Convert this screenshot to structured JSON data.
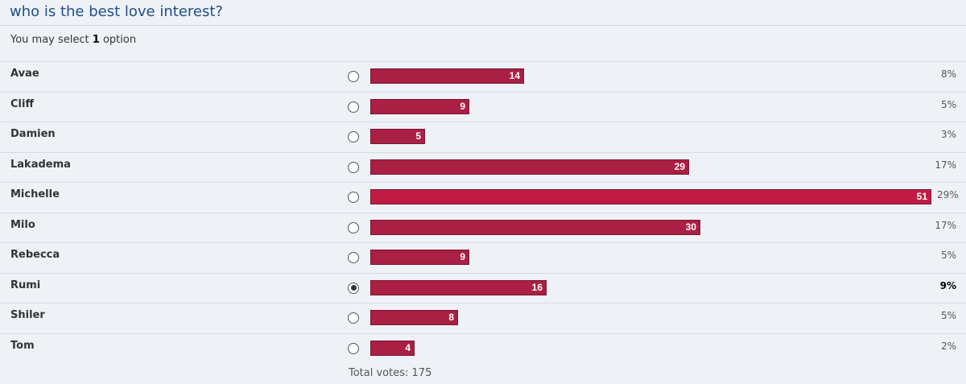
{
  "poll": {
    "title": "who is the best love interest?",
    "select_prefix": "You may select",
    "select_count": "1",
    "select_suffix": "option",
    "total_votes_label": "Total votes: 175",
    "bar_color": "#aa1f44",
    "max_votes": 51,
    "options": [
      {
        "label": "Avae",
        "votes": 14,
        "votes_text": "14",
        "percent": "8%",
        "selected": false
      },
      {
        "label": "Cliff",
        "votes": 9,
        "votes_text": "9",
        "percent": "5%",
        "selected": false
      },
      {
        "label": "Damien",
        "votes": 5,
        "votes_text": "5",
        "percent": "3%",
        "selected": false
      },
      {
        "label": "Lakadema",
        "votes": 29,
        "votes_text": "29",
        "percent": "17%",
        "selected": false
      },
      {
        "label": "Michelle",
        "votes": 51,
        "votes_text": "51",
        "percent": "29%",
        "selected": false
      },
      {
        "label": "Milo",
        "votes": 30,
        "votes_text": "30",
        "percent": "17%",
        "selected": false
      },
      {
        "label": "Rebecca",
        "votes": 9,
        "votes_text": "9",
        "percent": "5%",
        "selected": false
      },
      {
        "label": "Rumi",
        "votes": 16,
        "votes_text": "16",
        "percent": "9%",
        "selected": true
      },
      {
        "label": "Shiler",
        "votes": 8,
        "votes_text": "8",
        "percent": "5%",
        "selected": false
      },
      {
        "label": "Tom",
        "votes": 4,
        "votes_text": "4",
        "percent": "2%",
        "selected": false
      }
    ]
  }
}
